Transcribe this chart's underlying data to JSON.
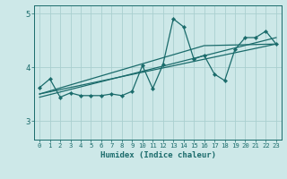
{
  "xlabel": "Humidex (Indice chaleur)",
  "xlim": [
    -0.5,
    23.5
  ],
  "ylim": [
    2.65,
    5.15
  ],
  "yticks": [
    3,
    4,
    5
  ],
  "xticks": [
    0,
    1,
    2,
    3,
    4,
    5,
    6,
    7,
    8,
    9,
    10,
    11,
    12,
    13,
    14,
    15,
    16,
    17,
    18,
    19,
    20,
    21,
    22,
    23
  ],
  "bg_color": "#cde8e8",
  "line_color": "#1a6b6b",
  "grid_color": "#aacfcf",
  "main_data_x": [
    0,
    1,
    2,
    3,
    4,
    5,
    6,
    7,
    8,
    9,
    10,
    11,
    12,
    13,
    14,
    15,
    16,
    17,
    18,
    19,
    20,
    21,
    22,
    23
  ],
  "main_data_y": [
    3.62,
    3.78,
    3.44,
    3.52,
    3.47,
    3.47,
    3.47,
    3.5,
    3.47,
    3.55,
    4.03,
    3.6,
    4.05,
    4.9,
    4.75,
    4.15,
    4.22,
    3.87,
    3.75,
    4.33,
    4.55,
    4.55,
    4.67,
    4.43
  ],
  "trend1_x": [
    0,
    23
  ],
  "trend1_y": [
    3.5,
    4.43
  ],
  "trend2_x": [
    0,
    16,
    23
  ],
  "trend2_y": [
    3.5,
    4.4,
    4.43
  ],
  "trend3_x": [
    0,
    23
  ],
  "trend3_y": [
    3.44,
    4.55
  ]
}
